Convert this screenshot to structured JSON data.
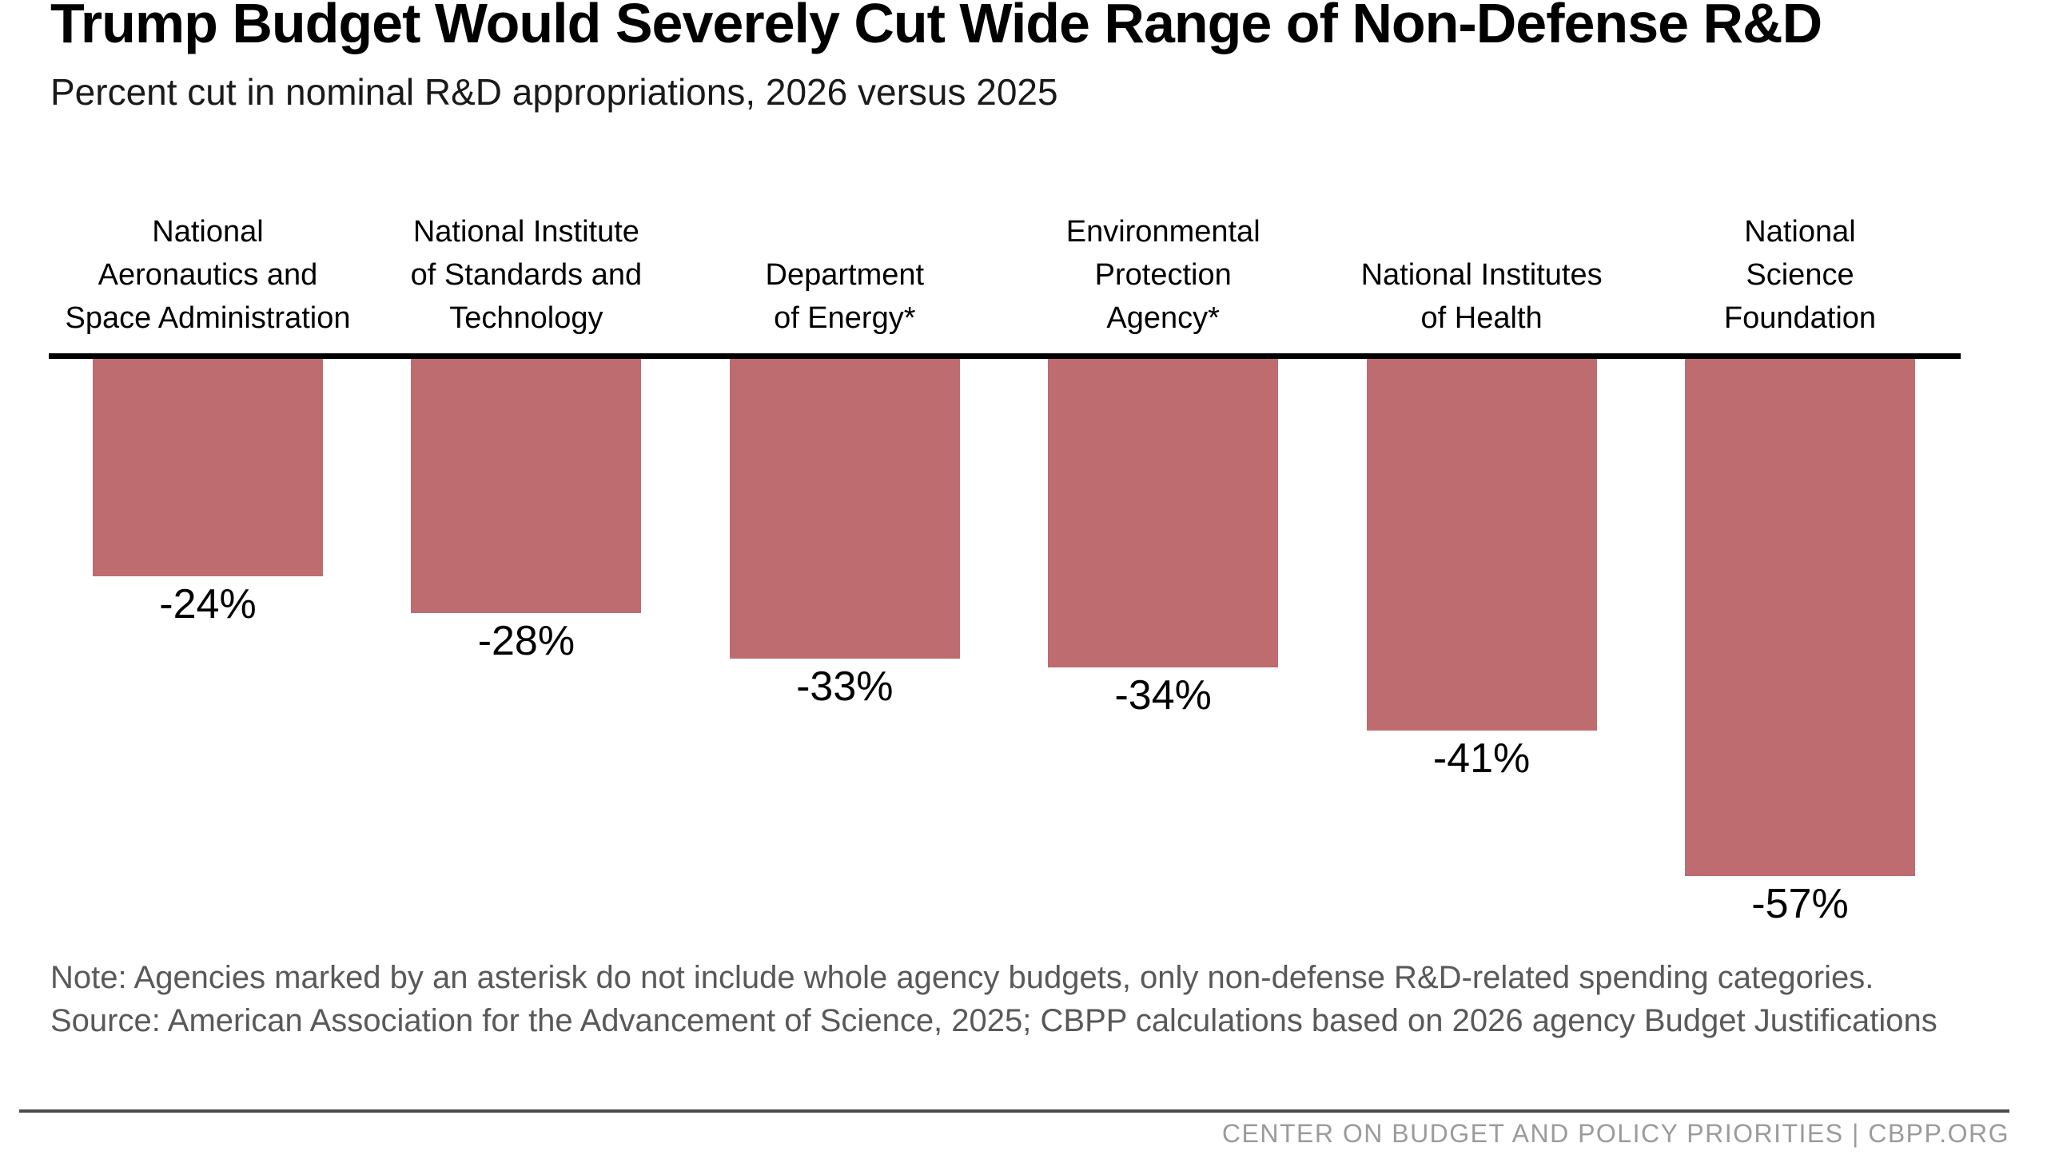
{
  "header": {
    "title": "Trump Budget Would Severely Cut Wide Range of Non-Defense R&D",
    "subtitle": "Percent cut in nominal R&D appropriations, 2026 versus 2025"
  },
  "chart_data": {
    "type": "bar",
    "orientation": "vertical-negative",
    "title": "Trump Budget Would Severely Cut Wide Range of Non-Defense R&D",
    "subtitle": "Percent cut in nominal R&D appropriations, 2026 versus 2025",
    "categories": [
      "National Aeronautics and Space Administration",
      "National Institute of Standards and Technology",
      "Department of Energy*",
      "Environmental Protection Agency*",
      "National Institutes of Health",
      "National Science Foundation"
    ],
    "category_lines": [
      [
        "National",
        "Aeronautics and",
        "Space Administration"
      ],
      [
        "National Institute",
        "of Standards and",
        "Technology"
      ],
      [
        "Department",
        "of Energy*"
      ],
      [
        "Environmental",
        "Protection",
        "Agency*"
      ],
      [
        "National Institutes",
        "of Health"
      ],
      [
        "National",
        "Science",
        "Foundation"
      ]
    ],
    "values": [
      -24,
      -28,
      -33,
      -34,
      -41,
      -57
    ],
    "value_labels": [
      "-24%",
      "-28%",
      "-33%",
      "-34%",
      "-41%",
      "-57%"
    ],
    "ylim": [
      -60,
      0
    ],
    "grid": false,
    "legend": false,
    "bar_color": "#bf6c70",
    "baseline_color": "#000000"
  },
  "footnotes": {
    "note": "Note: Agencies marked by an asterisk do not include whole agency budgets, only non-defense R&D-related spending categories.",
    "source": "Source: American Association for the Advancement of Science, 2025; CBPP calculations based on 2026 agency Budget Justifications"
  },
  "footer": {
    "branding": "CENTER ON BUDGET AND POLICY PRIORITIES | CBPP.ORG"
  },
  "colors": {
    "bar": "#bf6c70",
    "baseline": "#000000",
    "footnote_text": "#595959",
    "branding_text": "#9b9b9b",
    "divider": "#4c4c4c"
  }
}
